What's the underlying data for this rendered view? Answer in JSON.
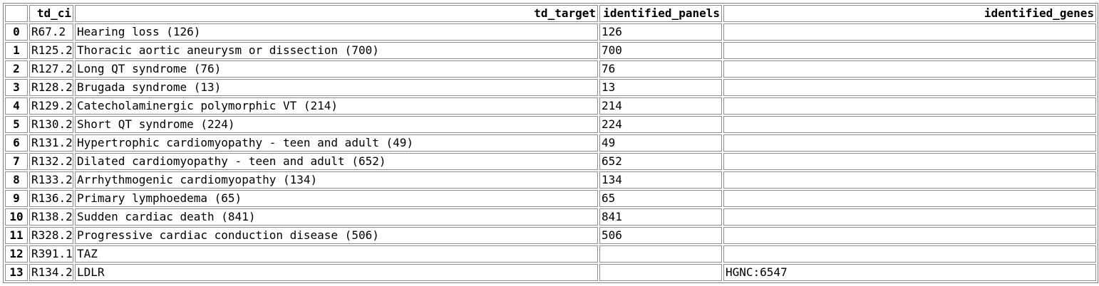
{
  "table": {
    "columns": [
      "",
      "td_ci",
      "td_target",
      "identified_panels",
      "identified_genes"
    ],
    "rows": [
      {
        "index": "0",
        "td_ci": "R67.2",
        "td_target": "Hearing loss (126)",
        "identified_panels": "126",
        "identified_genes": ""
      },
      {
        "index": "1",
        "td_ci": "R125.2",
        "td_target": "Thoracic aortic aneurysm or dissection (700)",
        "identified_panels": "700",
        "identified_genes": ""
      },
      {
        "index": "2",
        "td_ci": "R127.2",
        "td_target": "Long QT syndrome (76)",
        "identified_panels": "76",
        "identified_genes": ""
      },
      {
        "index": "3",
        "td_ci": "R128.2",
        "td_target": "Brugada syndrome (13)",
        "identified_panels": "13",
        "identified_genes": ""
      },
      {
        "index": "4",
        "td_ci": "R129.2",
        "td_target": "Catecholaminergic polymorphic VT (214)",
        "identified_panels": "214",
        "identified_genes": ""
      },
      {
        "index": "5",
        "td_ci": "R130.2",
        "td_target": "Short QT syndrome (224)",
        "identified_panels": "224",
        "identified_genes": ""
      },
      {
        "index": "6",
        "td_ci": "R131.2",
        "td_target": "Hypertrophic cardiomyopathy - teen and adult (49)",
        "identified_panels": "49",
        "identified_genes": ""
      },
      {
        "index": "7",
        "td_ci": "R132.2",
        "td_target": "Dilated cardiomyopathy - teen and adult (652)",
        "identified_panels": "652",
        "identified_genes": ""
      },
      {
        "index": "8",
        "td_ci": "R133.2",
        "td_target": "Arrhythmogenic cardiomyopathy (134)",
        "identified_panels": "134",
        "identified_genes": ""
      },
      {
        "index": "9",
        "td_ci": "R136.2",
        "td_target": "Primary lymphoedema (65)",
        "identified_panels": "65",
        "identified_genes": ""
      },
      {
        "index": "10",
        "td_ci": "R138.2",
        "td_target": "Sudden cardiac death (841)",
        "identified_panels": "841",
        "identified_genes": ""
      },
      {
        "index": "11",
        "td_ci": "R328.2",
        "td_target": "Progressive cardiac conduction disease (506)",
        "identified_panels": "506",
        "identified_genes": ""
      },
      {
        "index": "12",
        "td_ci": "R391.1",
        "td_target": "TAZ",
        "identified_panels": "",
        "identified_genes": ""
      },
      {
        "index": "13",
        "td_ci": "R134.2",
        "td_target": "LDLR",
        "identified_panels": "",
        "identified_genes": "HGNC:6547"
      }
    ]
  }
}
